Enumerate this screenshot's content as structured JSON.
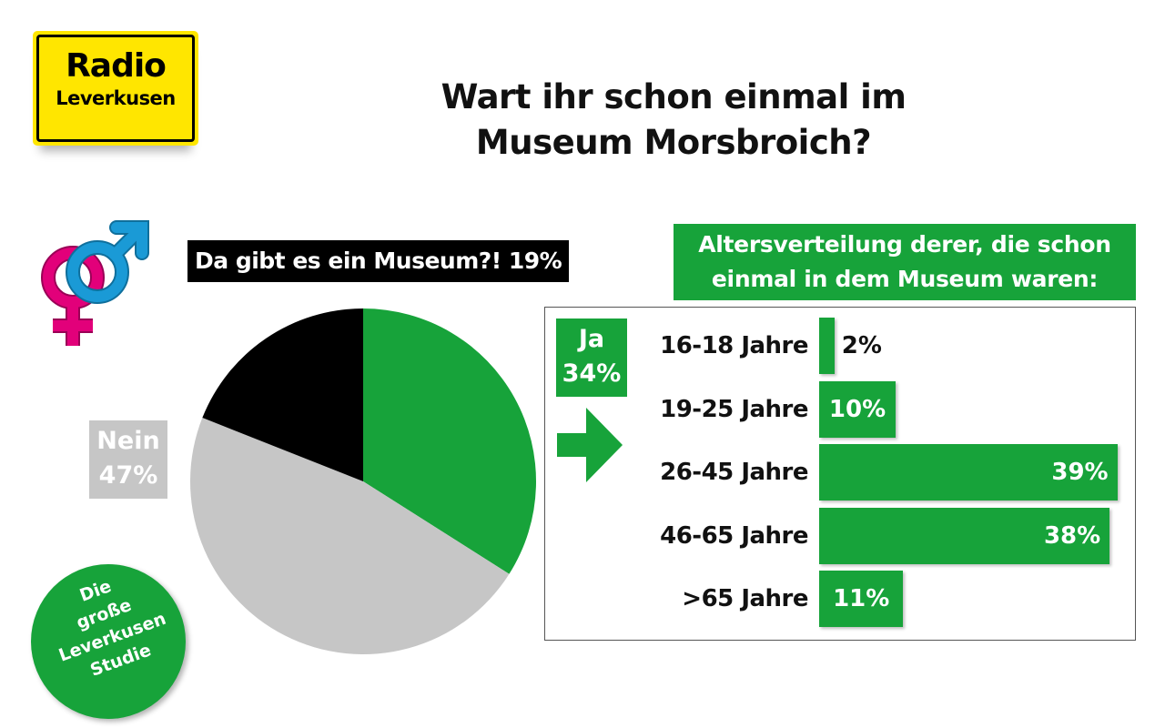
{
  "logo": {
    "line1": "Radio",
    "line2": "Leverkusen"
  },
  "title": {
    "line1": "Wart ihr schon einmal im",
    "line2": "Museum Morsbroich?"
  },
  "badge": {
    "lines": [
      "Die",
      "große",
      "Leverkusen",
      "Studie"
    ]
  },
  "colors": {
    "green": "#17a33a",
    "gray": "#c6c6c6",
    "black": "#000000",
    "yellow": "#ffe600",
    "pink": "#e2007a",
    "blue": "#1a9ad6"
  },
  "chart_data": [
    {
      "type": "pie",
      "title": "Wart ihr schon einmal im Museum Morsbroich?",
      "slices": [
        {
          "label": "Ja",
          "value": 34,
          "value_label": "34%",
          "color": "#17a33a"
        },
        {
          "label": "Nein",
          "value": 47,
          "value_label": "47%",
          "color": "#c6c6c6"
        },
        {
          "label": "Da gibt es ein Museum?!",
          "value": 19,
          "value_label": "19%",
          "color": "#000000"
        }
      ]
    },
    {
      "type": "bar",
      "orientation": "horizontal",
      "title": {
        "line1": "Altersverteilung derer, die schon",
        "line2": "einmal in dem Museum waren:"
      },
      "categories": [
        "16-18 Jahre",
        "19-25 Jahre",
        "26-45 Jahre",
        "46-65 Jahre",
        ">65 Jahre"
      ],
      "values": [
        2,
        10,
        39,
        38,
        11
      ],
      "value_labels": [
        "2%",
        "10%",
        "39%",
        "38%",
        "11%"
      ],
      "unit": "%"
    }
  ]
}
